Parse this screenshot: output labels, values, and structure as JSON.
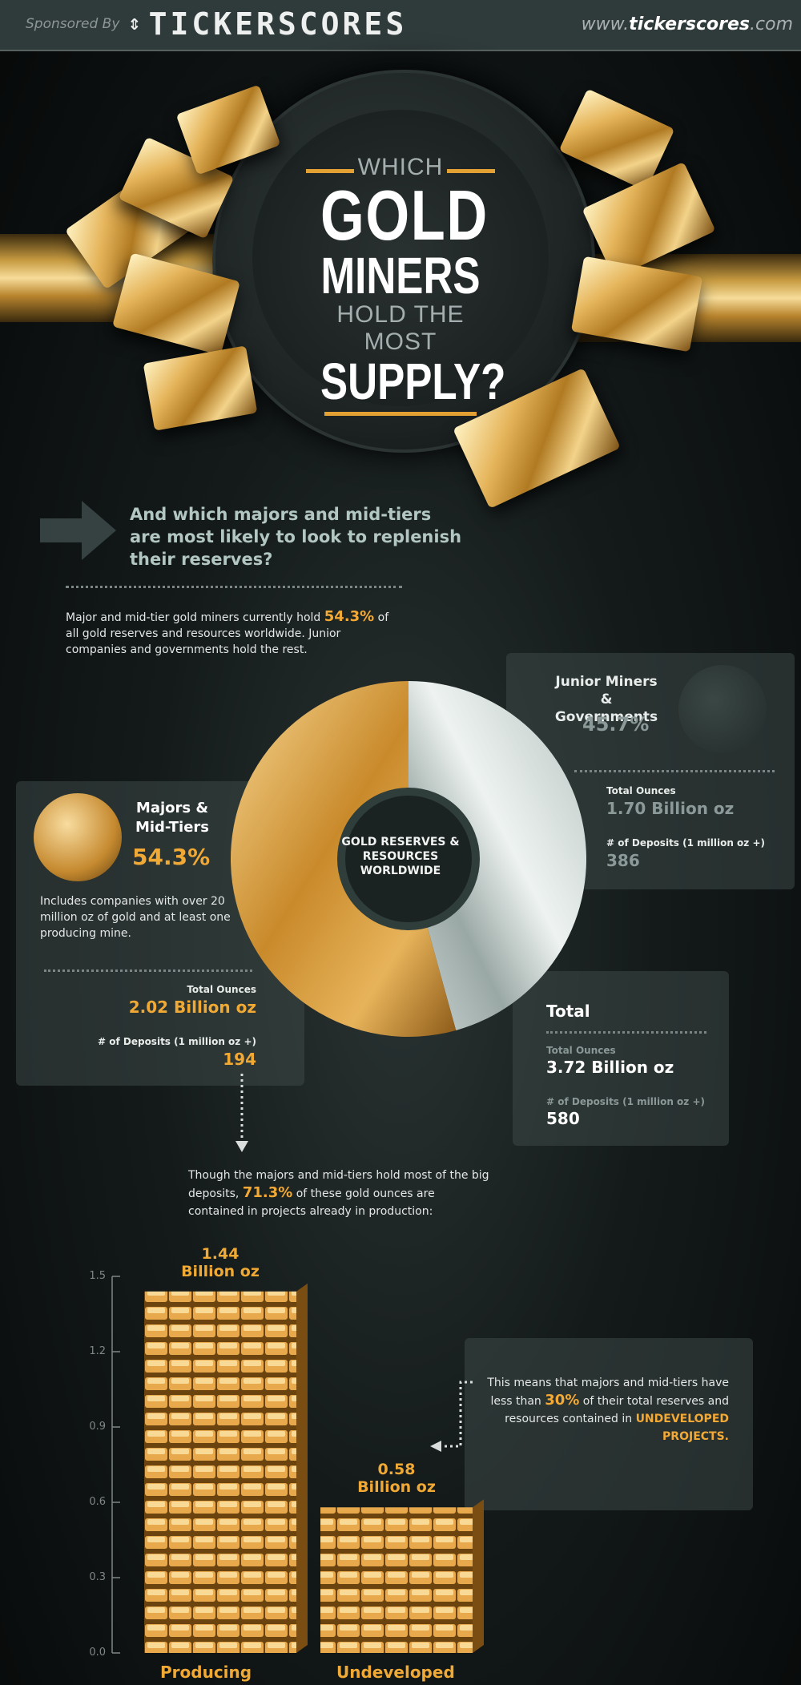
{
  "header": {
    "sponsored": "Sponsored By",
    "brand": "TICKERSCORES",
    "site_prefix": "www.",
    "site_name": "tickerscores",
    "site_suffix": ".com"
  },
  "hero": {
    "line1": "WHICH",
    "line2": "GOLD",
    "line3": "MINERS",
    "line4": "HOLD THE MOST",
    "line5": "SUPPLY?"
  },
  "intro": {
    "question": "And which majors and mid-tiers are most likely to look to replenish their reserves?",
    "text_before": "Major and mid-tier gold miners currently hold ",
    "highlight": "54.3%",
    "text_after": " of all gold reserves and resources worldwide. Junior companies and governments hold the rest."
  },
  "donut": {
    "center_label": "GOLD RESERVES & RESOURCES WORLDWIDE"
  },
  "majors": {
    "title": "Majors & Mid-Tiers",
    "percent": "54.3%",
    "desc": "Includes companies with over 20 million oz of gold and at least one producing mine.",
    "ounces_label": "Total Ounces",
    "ounces": "2.02 Billion oz",
    "deposits_label": "# of Deposits (1 million oz +)",
    "deposits": "194"
  },
  "juniors": {
    "title": "Junior Miners & Governments",
    "percent": "45.7%",
    "ounces_label": "Total Ounces",
    "ounces": "1.70 Billion oz",
    "deposits_label": "# of Deposits (1 million oz +)",
    "deposits": "386"
  },
  "total": {
    "title": "Total",
    "ounces_label": "Total Ounces",
    "ounces": "3.72 Billion oz",
    "deposits_label": "# of Deposits (1 million oz +)",
    "deposits": "580"
  },
  "production": {
    "text_before": "Though the majors and mid-tiers hold most of the big deposits, ",
    "highlight": "71.3%",
    "text_after": " of these gold ounces are contained in projects already in production:"
  },
  "note": {
    "text_before": "This means that majors and mid-tiers have less than ",
    "highlight": "30%",
    "text_mid": " of their total reserves and resources contained in ",
    "highlight2": "UNDEVELOPED PROJECTS."
  },
  "colors": {
    "gold": "#f0a935",
    "silver": "#c4cfcc",
    "panel": "#3c4847"
  },
  "chart_data": [
    {
      "type": "pie",
      "title": "GOLD RESERVES & RESOURCES WORLDWIDE",
      "categories": [
        "Majors & Mid-Tiers",
        "Junior Miners & Governments"
      ],
      "values": [
        54.3,
        45.7
      ]
    },
    {
      "type": "bar",
      "categories": [
        "Producing",
        "Undeveloped"
      ],
      "values": [
        1.44,
        0.58
      ],
      "value_labels": [
        "1.44 Billion oz",
        "0.58 Billion oz"
      ],
      "ylim": [
        0,
        1.5
      ],
      "yticks": [
        "0.0",
        "0.3",
        "0.6",
        "0.9",
        "1.2",
        "1.5"
      ],
      "xlabel": "",
      "ylabel": ""
    }
  ]
}
